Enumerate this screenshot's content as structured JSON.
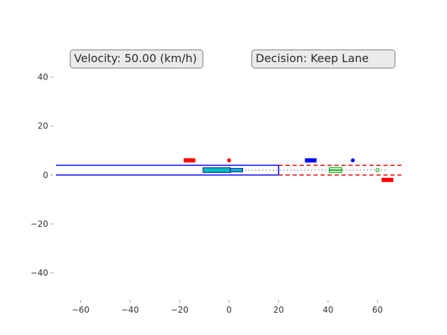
{
  "hud": {
    "velocity_text": "Velocity: 50.00 (km/h)",
    "decision_text": "Decision: Keep Lane"
  },
  "chart_data": {
    "type": "scatter",
    "title": "",
    "xlabel": "",
    "ylabel": "",
    "xlim": [
      -70,
      70
    ],
    "ylim": [
      -50,
      55
    ],
    "grid": false,
    "x_ticks": [
      -60,
      -40,
      -20,
      0,
      20,
      40,
      60
    ],
    "y_ticks": [
      -40,
      -20,
      0,
      20,
      40
    ],
    "lane_lines_past": {
      "color": "#0000ff",
      "y_values": [
        0,
        4
      ],
      "x_range": [
        -70,
        20
      ],
      "style": "solid"
    },
    "lane_lines_ahead": {
      "color": "#e00000",
      "y_values": [
        0,
        4
      ],
      "x_range": [
        20,
        70
      ],
      "style": "dashed"
    },
    "lane_end_marker": {
      "x": 20,
      "y_range": [
        0,
        4
      ],
      "color": "#0000ff"
    },
    "planned_path": {
      "color": "#000000",
      "y": 2,
      "x_range": [
        5,
        64
      ],
      "style": "dotted"
    },
    "ego_vehicle": {
      "x": -5,
      "y": 2,
      "length": 11,
      "width": 2,
      "color": "#00bcbc",
      "outline": "#0000aa"
    },
    "ego_ghost": {
      "x": 3,
      "y": 2,
      "length": 5,
      "width": 1.4,
      "color": "#00bcbc",
      "outline": "#0000aa"
    },
    "vehicles": [
      {
        "x": -16,
        "y": 6,
        "length": 5,
        "width": 2,
        "color": "#ff0000"
      },
      {
        "x": 33,
        "y": 6,
        "length": 5,
        "width": 2,
        "color": "#0000ff"
      },
      {
        "x": 43,
        "y": 2,
        "length": 5,
        "width": 2,
        "color": "#00aa00",
        "style": "outline"
      },
      {
        "x": 64,
        "y": -2,
        "length": 5,
        "width": 2,
        "color": "#ff0000"
      }
    ],
    "markers": [
      {
        "x": 0,
        "y": 6,
        "color": "#ff0000"
      },
      {
        "x": 50,
        "y": 6,
        "color": "#0000ff"
      },
      {
        "x": 60,
        "y": 2,
        "color": "#00aa00",
        "style": "hollow"
      }
    ]
  }
}
